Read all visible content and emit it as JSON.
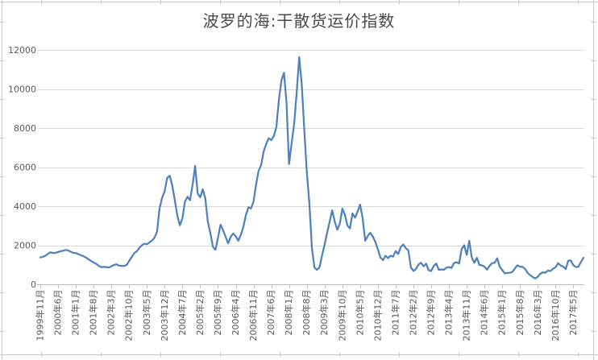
{
  "chart_data": {
    "type": "line",
    "title": "波罗的海:干散货运价指数",
    "xlabel": "",
    "ylabel": "",
    "ylim": [
      0,
      12000
    ],
    "y_ticks": [
      0,
      2000,
      4000,
      6000,
      8000,
      10000,
      12000
    ],
    "grid": "horizontal",
    "legend": "none",
    "x_frequency": "monthly",
    "x_first_point": "1999年11月",
    "x_label_interval_months": 7,
    "x_tick_labels": [
      "1999年11月",
      "2000年6月",
      "2001年1月",
      "2001年8月",
      "2002年3月",
      "2002年10月",
      "2003年5月",
      "2003年12月",
      "2004年7月",
      "2005年2月",
      "2005年9月",
      "2006年4月",
      "2006年11月",
      "2007年6月",
      "2008年1月",
      "2008年8月",
      "2009年3月",
      "2009年10月",
      "2010年5月",
      "2010年12月",
      "2011年7月",
      "2012年2月",
      "2012年9月",
      "2013年4月",
      "2013年11月",
      "2014年6月",
      "2015年1月",
      "2015年8月",
      "2016年3月",
      "2016年10月",
      "2017年5月"
    ],
    "colors": {
      "series_line": "#4f81bd",
      "gridline": "#d9d9d9",
      "axis_line": "#bfbfbf",
      "tick_mark": "#bfbfbf",
      "axis_label": "#595959",
      "title": "#4a4a4a",
      "worksheet_gridline": "#c9c9c9"
    },
    "series": [
      {
        "values": [
          1375,
          1410,
          1460,
          1560,
          1640,
          1600,
          1615,
          1650,
          1690,
          1720,
          1760,
          1730,
          1670,
          1610,
          1600,
          1545,
          1490,
          1440,
          1370,
          1280,
          1190,
          1120,
          1050,
          950,
          880,
          890,
          880,
          860,
          920,
          990,
          1020,
          960,
          945,
          940,
          990,
          1190,
          1390,
          1590,
          1690,
          1860,
          2000,
          2080,
          2050,
          2150,
          2240,
          2390,
          2700,
          3900,
          4440,
          4765,
          5450,
          5560,
          5050,
          4300,
          3500,
          3020,
          3380,
          4240,
          4480,
          4300,
          5100,
          6060,
          4660,
          4450,
          4870,
          4400,
          3200,
          2620,
          1920,
          1770,
          2380,
          3050,
          2780,
          2430,
          2100,
          2430,
          2600,
          2460,
          2230,
          2530,
          2940,
          3540,
          3940,
          3880,
          4230,
          5100,
          5810,
          6100,
          6800,
          7190,
          7480,
          7380,
          7590,
          8050,
          9450,
          10430,
          10834,
          9310,
          6157,
          7200,
          8200,
          9800,
          11629,
          10250,
          7920,
          5745,
          4160,
          1880,
          860,
          740,
          870,
          1480,
          2030,
          2640,
          3200,
          3790,
          3210,
          2800,
          3100,
          3880,
          3560,
          3010,
          2860,
          3630,
          3410,
          3720,
          4080,
          3370,
          2230,
          2470,
          2640,
          2450,
          2170,
          1790,
          1370,
          1240,
          1460,
          1340,
          1460,
          1420,
          1700,
          1550,
          1900,
          2040,
          1850,
          1740,
          867,
          684,
          780,
          1010,
          1100,
          920,
          1060,
          717,
          680,
          940,
          1060,
          740,
          760,
          745,
          850,
          880,
          840,
          1090,
          1130,
          1060,
          1800,
          2000,
          1500,
          2230,
          1370,
          1100,
          1360,
          990,
          970,
          900,
          750,
          950,
          1080,
          1100,
          1330,
          900,
          730,
          560,
          580,
          590,
          630,
          820,
          975,
          900,
          890,
          790,
          580,
          470,
          370,
          300,
          390,
          540,
          610,
          600,
          700,
          680,
          800,
          870,
          1080,
          960,
          910,
          780,
          1210,
          1220,
          980,
          880,
          900,
          1140,
          1360
        ]
      }
    ]
  }
}
